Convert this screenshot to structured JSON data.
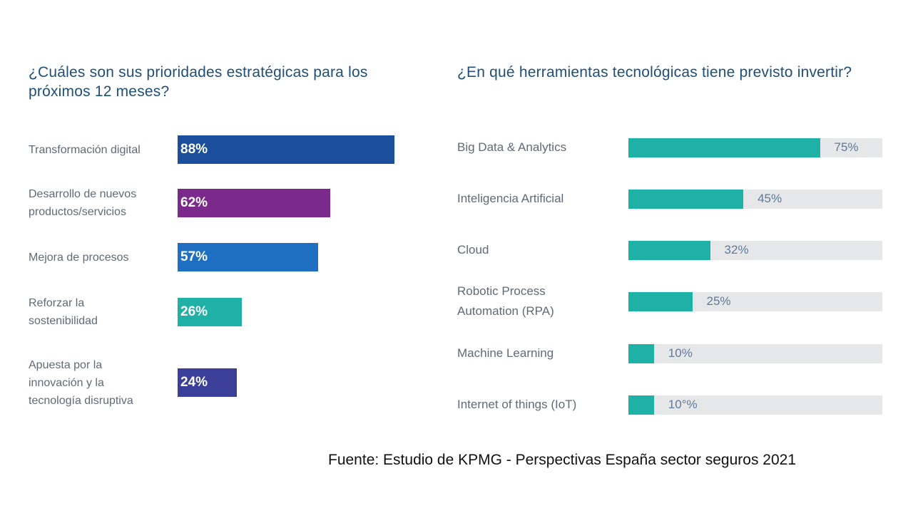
{
  "colors": {
    "title": "#1f4e79",
    "label": "#5f6b78",
    "track": "#e6e7e9",
    "right_fill": "#1fb1a6",
    "right_value": "#5f7a9a"
  },
  "chart_data": [
    {
      "type": "bar",
      "orientation": "horizontal",
      "title": "¿Cuáles son sus prioridades estratégicas para los próximos 12 meses?",
      "categories": [
        "Transformación digital",
        "Desarrollo de nuevos productos/servicios",
        "Mejora de procesos",
        "Reforzar la sostenibilidad",
        "Apuesta por la innovación y la tecnología disruptiva"
      ],
      "category_lines": [
        [
          "Transformación digital"
        ],
        [
          "Desarrollo de nuevos",
          "productos/servicios"
        ],
        [
          "Mejora de procesos"
        ],
        [
          "Reforzar la",
          "sostenibilidad"
        ],
        [
          "Apuesta por la",
          "innovación y la",
          "tecnología disruptiva"
        ]
      ],
      "values": [
        88,
        62,
        57,
        26,
        24
      ],
      "value_labels": [
        "88%",
        "62%",
        "57%",
        "26%",
        "24%"
      ],
      "bar_colors": [
        "#1b4f9c",
        "#7b2a8c",
        "#1e6fc2",
        "#1fb1a6",
        "#3b3f98"
      ],
      "xlim": [
        0,
        100
      ],
      "grid": false
    },
    {
      "type": "bar",
      "orientation": "horizontal",
      "title": "¿En qué herramientas tecnológicas tiene previsto invertir?",
      "categories": [
        "Big Data & Analytics",
        "Inteligencia Artificial",
        "Cloud",
        "Robotic Process Automation (RPA)",
        "Machine Learning",
        "Internet of things (IoT)"
      ],
      "category_lines": [
        [
          "Big Data & Analytics"
        ],
        [
          "Inteligencia Artificial"
        ],
        [
          "Cloud"
        ],
        [
          "Robotic Process",
          "Automation (RPA)"
        ],
        [
          "Machine Learning"
        ],
        [
          "Internet of things (IoT)"
        ]
      ],
      "values": [
        75,
        45,
        32,
        25,
        10,
        10
      ],
      "value_labels": [
        "75%",
        "45%",
        "32%",
        "25%",
        "10%",
        "10°%"
      ],
      "xlim": [
        0,
        100
      ],
      "grid": false
    }
  ],
  "source": "Fuente: Estudio de KPMG - Perspectivas España sector seguros 2021"
}
